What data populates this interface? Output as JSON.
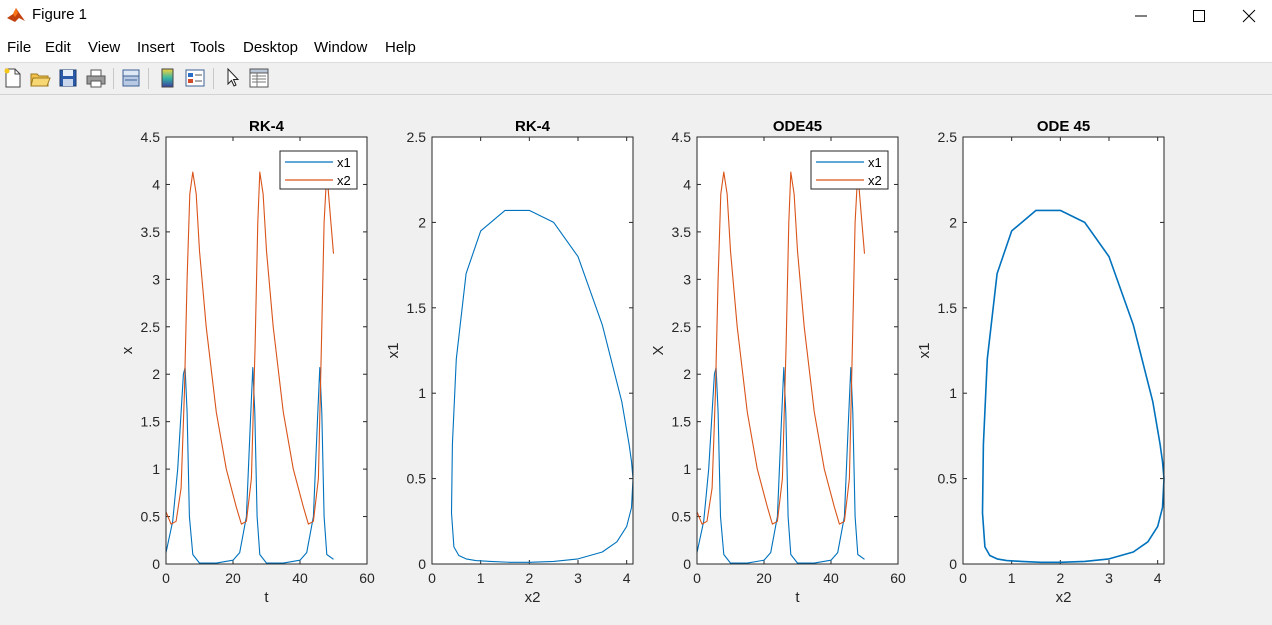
{
  "window": {
    "title": "Figure 1"
  },
  "menu": [
    "File",
    "Edit",
    "View",
    "Insert",
    "Tools",
    "Desktop",
    "Window",
    "Help"
  ],
  "toolbar": [
    "new-figure-icon",
    "open-file-icon",
    "save-icon",
    "print-icon",
    "link-plot-icon",
    "colorbar-icon",
    "legend-icon",
    "edit-plot-pointer-icon",
    "property-inspector-icon"
  ],
  "colors": {
    "x1": "#0072BD",
    "x2": "#D95319"
  },
  "chart_data": [
    {
      "type": "line",
      "title": "RK-4",
      "xlabel": "t",
      "ylabel": "x",
      "xlim": [
        0,
        60
      ],
      "ylim": [
        0,
        4.5
      ],
      "xticks": [
        "0",
        "20",
        "40",
        "60"
      ],
      "yticks": [
        "0",
        "0.5",
        "1",
        "1.5",
        "2",
        "2.5",
        "3",
        "3.5",
        "4",
        "4.5"
      ],
      "legend": {
        "placement": "top-right",
        "entries": [
          "x1",
          "x2"
        ]
      },
      "series": [
        {
          "name": "x1",
          "x": [
            0,
            2,
            3.5,
            4.5,
            5.2,
            5.7,
            6.3,
            7,
            8,
            10,
            15,
            20,
            22,
            24,
            25.2,
            25.9,
            26.5,
            27.2,
            28,
            30,
            35,
            40,
            42,
            44,
            45.2,
            45.9,
            46.5,
            47.2,
            48,
            50
          ],
          "y": [
            0.12,
            0.45,
            1.0,
            1.6,
            2.0,
            2.07,
            1.6,
            0.5,
            0.1,
            0.01,
            0.01,
            0.04,
            0.12,
            0.5,
            1.5,
            2.07,
            1.6,
            0.5,
            0.1,
            0.01,
            0.01,
            0.04,
            0.12,
            0.5,
            1.5,
            2.07,
            1.6,
            0.5,
            0.1,
            0.05
          ]
        },
        {
          "name": "x2",
          "x": [
            0,
            1.5,
            3,
            4.5,
            5.5,
            6.3,
            7.1,
            8,
            9,
            10,
            12,
            15,
            18,
            21,
            22.5,
            24,
            25.5,
            26.6,
            27.4,
            28,
            29,
            30,
            32,
            35,
            38,
            41,
            42.5,
            44,
            45.5,
            46.4,
            47.2,
            48,
            49,
            50
          ],
          "y": [
            0.55,
            0.42,
            0.45,
            0.8,
            1.8,
            3.0,
            3.9,
            4.13,
            3.9,
            3.3,
            2.5,
            1.6,
            1.0,
            0.6,
            0.42,
            0.45,
            0.9,
            2.3,
            3.6,
            4.13,
            3.9,
            3.3,
            2.5,
            1.6,
            1.0,
            0.6,
            0.42,
            0.45,
            0.9,
            2.3,
            3.6,
            4.13,
            3.7,
            3.27
          ]
        }
      ]
    },
    {
      "type": "line",
      "title": "RK-4",
      "xlabel": "x2",
      "ylabel": "x1",
      "xlim": [
        0,
        4.13
      ],
      "ylim": [
        0,
        2.5
      ],
      "xticks": [
        "0",
        "1",
        "2",
        "3",
        "4"
      ],
      "yticks": [
        "0",
        "0.5",
        "1",
        "1.5",
        "2",
        "2.5"
      ],
      "series": [
        {
          "name": "",
          "x": [
            4.13,
            4.1,
            4.05,
            3.9,
            3.5,
            3.0,
            2.5,
            2.0,
            1.5,
            1.0,
            0.7,
            0.5,
            0.42,
            0.4,
            0.45,
            0.55,
            0.7,
            0.9,
            1.2,
            1.6,
            2.0,
            2.5,
            3.0,
            3.5,
            3.8,
            4.0,
            4.1,
            4.13
          ],
          "y": [
            0.5,
            0.6,
            0.7,
            0.95,
            1.4,
            1.8,
            2.0,
            2.07,
            2.07,
            1.95,
            1.7,
            1.2,
            0.7,
            0.3,
            0.1,
            0.05,
            0.03,
            0.02,
            0.015,
            0.01,
            0.01,
            0.015,
            0.03,
            0.07,
            0.13,
            0.22,
            0.33,
            0.5
          ]
        }
      ]
    },
    {
      "type": "line",
      "title": "ODE45",
      "xlabel": "t",
      "ylabel": "X",
      "xlim": [
        0,
        60
      ],
      "ylim": [
        0,
        4.5
      ],
      "xticks": [
        "0",
        "20",
        "40",
        "60"
      ],
      "yticks": [
        "0",
        "0.5",
        "1",
        "1.5",
        "2",
        "2.5",
        "3",
        "3.5",
        "4",
        "4.5"
      ],
      "legend": {
        "placement": "top-right",
        "entries": [
          "x1",
          "x2"
        ]
      },
      "series": [
        {
          "name": "x1",
          "x": [
            0,
            2,
            3.5,
            4.5,
            5.2,
            5.7,
            6.3,
            7,
            8,
            10,
            15,
            20,
            22,
            24,
            25.2,
            25.9,
            26.5,
            27.2,
            28,
            30,
            35,
            40,
            42,
            44,
            45.2,
            45.9,
            46.5,
            47.2,
            48,
            50
          ],
          "y": [
            0.12,
            0.45,
            1.0,
            1.6,
            2.0,
            2.07,
            1.6,
            0.5,
            0.1,
            0.01,
            0.01,
            0.04,
            0.12,
            0.5,
            1.5,
            2.07,
            1.6,
            0.5,
            0.1,
            0.01,
            0.01,
            0.04,
            0.12,
            0.5,
            1.5,
            2.07,
            1.6,
            0.5,
            0.1,
            0.05
          ]
        },
        {
          "name": "x2",
          "x": [
            0,
            1.5,
            3,
            4.5,
            5.5,
            6.3,
            7.1,
            8,
            9,
            10,
            12,
            15,
            18,
            21,
            22.5,
            24,
            25.5,
            26.6,
            27.4,
            28,
            29,
            30,
            32,
            35,
            38,
            41,
            42.5,
            44,
            45.5,
            46.4,
            47.2,
            48,
            49,
            50
          ],
          "y": [
            0.55,
            0.42,
            0.45,
            0.8,
            1.8,
            3.0,
            3.9,
            4.13,
            3.9,
            3.3,
            2.5,
            1.6,
            1.0,
            0.6,
            0.42,
            0.45,
            0.9,
            2.3,
            3.6,
            4.13,
            3.9,
            3.3,
            2.5,
            1.6,
            1.0,
            0.6,
            0.42,
            0.45,
            0.9,
            2.3,
            3.6,
            4.13,
            3.7,
            3.27
          ]
        }
      ]
    },
    {
      "type": "line",
      "title": "ODE 45",
      "xlabel": "x2",
      "ylabel": "x1",
      "xlim": [
        0,
        4.13
      ],
      "ylim": [
        0,
        2.5
      ],
      "xticks": [
        "0",
        "1",
        "2",
        "3",
        "4"
      ],
      "yticks": [
        "0",
        "0.5",
        "1",
        "1.5",
        "2",
        "2.5"
      ],
      "series": [
        {
          "name": "",
          "x": [
            4.13,
            4.1,
            4.05,
            3.9,
            3.5,
            3.0,
            2.5,
            2.0,
            1.5,
            1.0,
            0.7,
            0.5,
            0.42,
            0.4,
            0.45,
            0.55,
            0.7,
            0.9,
            1.2,
            1.6,
            2.0,
            2.5,
            3.0,
            3.5,
            3.8,
            4.0,
            4.1,
            4.13
          ],
          "y": [
            0.5,
            0.6,
            0.7,
            0.95,
            1.4,
            1.8,
            2.0,
            2.07,
            2.07,
            1.95,
            1.7,
            1.2,
            0.7,
            0.3,
            0.1,
            0.05,
            0.03,
            0.02,
            0.015,
            0.01,
            0.01,
            0.015,
            0.03,
            0.07,
            0.13,
            0.22,
            0.33,
            0.5
          ]
        }
      ]
    }
  ]
}
